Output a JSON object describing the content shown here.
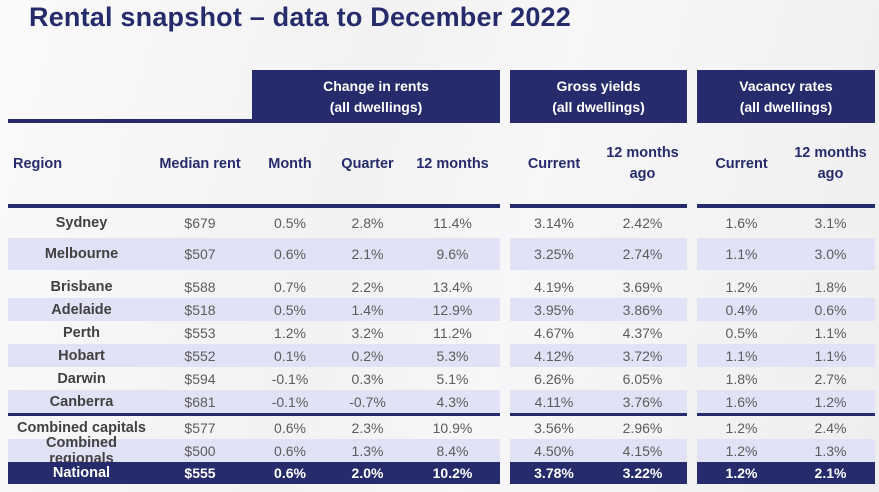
{
  "title": "Rental snapshot – data to December 2022",
  "colors": {
    "navy": "#262c6b",
    "lavender_row": "#e2e2f6",
    "body_text": "#5c5c5c"
  },
  "band": {
    "change_in_rents": {
      "line1": "Change in rents",
      "line2": "(all dwellings)"
    },
    "gross_yields": {
      "line1": "Gross yields",
      "line2": "(all dwellings)"
    },
    "vacancy_rates": {
      "line1": "Vacancy rates",
      "line2": "(all dwellings)"
    }
  },
  "columns": {
    "region": "Region",
    "median_rent": "Median rent",
    "month": "Month",
    "quarter": "Quarter",
    "twelve_months": "12 months",
    "gy_current": "Current",
    "gy_12mo_line1": "12 months",
    "gy_12mo_line2": "ago",
    "vr_current": "Current",
    "vr_12mo_line1": "12 months",
    "vr_12mo_line2": "ago"
  },
  "rows": [
    [
      "Sydney",
      "$679",
      "0.5%",
      "2.8%",
      "11.4%",
      "3.14%",
      "2.42%",
      "1.6%",
      "3.1%"
    ],
    [
      "Melbourne",
      "$507",
      "0.6%",
      "2.1%",
      "9.6%",
      "3.25%",
      "2.74%",
      "1.1%",
      "3.0%"
    ],
    [
      "Brisbane",
      "$588",
      "0.7%",
      "2.2%",
      "13.4%",
      "4.19%",
      "3.69%",
      "1.2%",
      "1.8%"
    ],
    [
      "Adelaide",
      "$518",
      "0.5%",
      "1.4%",
      "12.9%",
      "3.95%",
      "3.86%",
      "0.4%",
      "0.6%"
    ],
    [
      "Perth",
      "$553",
      "1.2%",
      "3.2%",
      "11.2%",
      "4.67%",
      "4.37%",
      "0.5%",
      "1.1%"
    ],
    [
      "Hobart",
      "$552",
      "0.1%",
      "0.2%",
      "5.3%",
      "4.12%",
      "3.72%",
      "1.1%",
      "1.1%"
    ],
    [
      "Darwin",
      "$594",
      "-0.1%",
      "0.3%",
      "5.1%",
      "6.26%",
      "6.05%",
      "1.8%",
      "2.7%"
    ],
    [
      "Canberra",
      "$681",
      "-0.1%",
      "-0.7%",
      "4.3%",
      "4.11%",
      "3.76%",
      "1.6%",
      "1.2%"
    ],
    [
      "Combined capitals",
      "$577",
      "0.6%",
      "2.3%",
      "10.9%",
      "3.56%",
      "2.96%",
      "1.2%",
      "2.4%"
    ],
    [
      "Combined regionals",
      "$500",
      "0.6%",
      "1.3%",
      "8.4%",
      "4.50%",
      "4.15%",
      "1.2%",
      "1.3%"
    ],
    [
      "National",
      "$555",
      "0.6%",
      "2.0%",
      "10.2%",
      "3.78%",
      "3.22%",
      "1.2%",
      "2.1%"
    ]
  ]
}
